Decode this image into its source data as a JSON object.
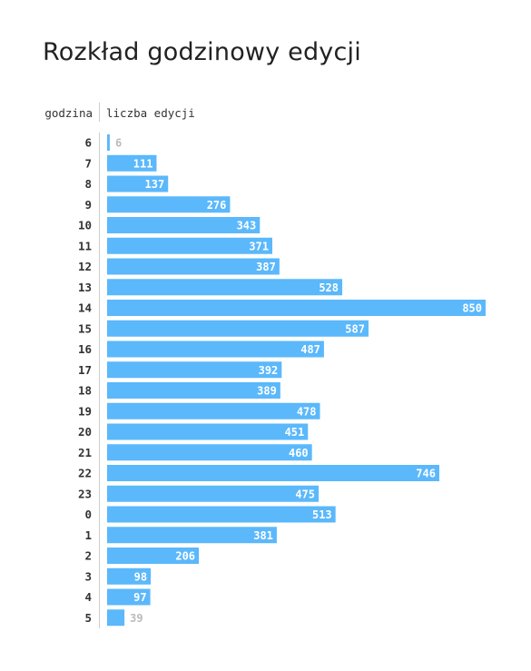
{
  "title": "Rozkład godzinowy edycji",
  "chart_data": {
    "type": "bar",
    "orientation": "horizontal",
    "title": "Rozkład godzinowy edycji",
    "category_header": "godzina",
    "value_header": "liczba edycji",
    "categories": [
      "6",
      "7",
      "8",
      "9",
      "10",
      "11",
      "12",
      "13",
      "14",
      "15",
      "16",
      "17",
      "18",
      "19",
      "20",
      "21",
      "22",
      "23",
      "0",
      "1",
      "2",
      "3",
      "4",
      "5"
    ],
    "values": [
      6,
      111,
      137,
      276,
      343,
      371,
      387,
      528,
      850,
      587,
      487,
      392,
      389,
      478,
      451,
      460,
      746,
      475,
      513,
      381,
      206,
      98,
      97,
      39
    ],
    "xlim": [
      0,
      850
    ],
    "grid": false,
    "bar_color": "#5bb8fb",
    "label_color": "#ffffff",
    "outside_label_color": "#bbbbbb"
  }
}
